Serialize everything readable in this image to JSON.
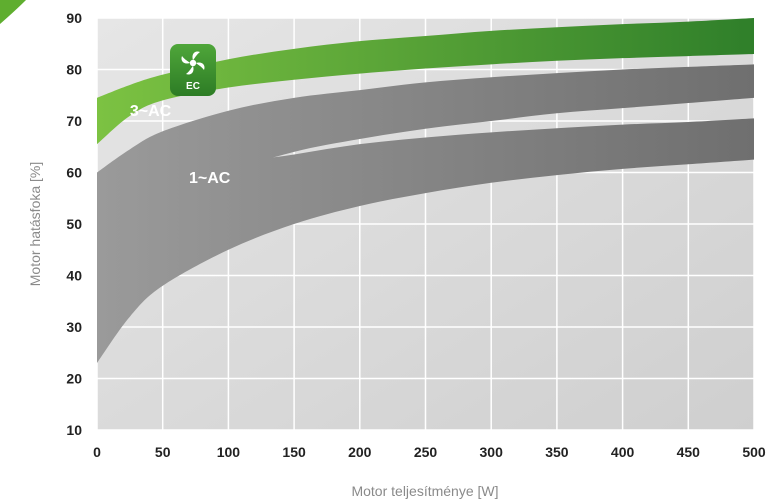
{
  "chart_data": {
    "type": "area",
    "title": "",
    "xlabel": "Motor teljesítménye [W]",
    "ylabel": "Motor hatásfoka [%]",
    "xlim": [
      0,
      500
    ],
    "ylim": [
      10,
      90
    ],
    "x_ticks": [
      0,
      50,
      100,
      150,
      200,
      250,
      300,
      350,
      400,
      450,
      500
    ],
    "y_ticks": [
      10,
      20,
      30,
      40,
      50,
      60,
      70,
      80,
      90
    ],
    "x_tick_labels": [
      "0",
      "50",
      "100",
      "150",
      "200",
      "250",
      "300",
      "350",
      "400",
      "450",
      "500"
    ],
    "y_tick_labels": [
      "10",
      "20",
      "30",
      "40",
      "50",
      "60",
      "70",
      "80",
      "90"
    ],
    "grid": true,
    "series": [
      {
        "name": "EC",
        "color": "#5fae2f",
        "x": [
          0,
          25,
          50,
          100,
          150,
          200,
          250,
          300,
          350,
          400,
          450,
          500
        ],
        "upper": [
          74.5,
          77,
          79,
          82,
          84,
          85.5,
          86.5,
          87.5,
          88.2,
          88.8,
          89.3,
          90
        ],
        "lower": [
          65.5,
          71,
          74,
          76.5,
          78,
          79.2,
          80.2,
          81,
          81.7,
          82.2,
          82.6,
          83
        ]
      },
      {
        "name": "3~AC",
        "color": "#8c8c8c",
        "x": [
          0,
          25,
          50,
          100,
          150,
          200,
          250,
          300,
          350,
          400,
          450,
          500
        ],
        "upper": [
          60,
          64.5,
          68,
          72,
          74.5,
          76,
          77.5,
          78.5,
          79.3,
          80,
          80.5,
          81
        ],
        "lower": [
          39,
          49,
          54,
          60,
          64,
          66.5,
          68.5,
          70,
          71.5,
          72.5,
          73.5,
          74.5
        ]
      },
      {
        "name": "1~AC",
        "color": "#8c8c8c",
        "x": [
          0,
          25,
          50,
          100,
          150,
          200,
          250,
          300,
          350,
          400,
          450,
          500
        ],
        "upper": [
          49,
          53,
          57,
          61.5,
          63.5,
          65.5,
          66.8,
          67.8,
          68.6,
          69.3,
          69.8,
          70.5
        ],
        "lower": [
          23,
          32,
          38,
          45,
          50,
          53.5,
          56,
          58,
          59.5,
          60.7,
          61.6,
          62.5
        ]
      }
    ],
    "annotations": [
      {
        "text": "3~AC",
        "x": 25,
        "y": 71
      },
      {
        "text": "1~AC",
        "x": 70,
        "y": 58
      }
    ]
  },
  "badge": {
    "text": "EC",
    "icon": "fan-icon",
    "color": "#3e8f2b"
  },
  "colors": {
    "plot_bg": "#d9d9d9",
    "grid": "#ffffff",
    "corner_accent": "#5fae2f"
  }
}
